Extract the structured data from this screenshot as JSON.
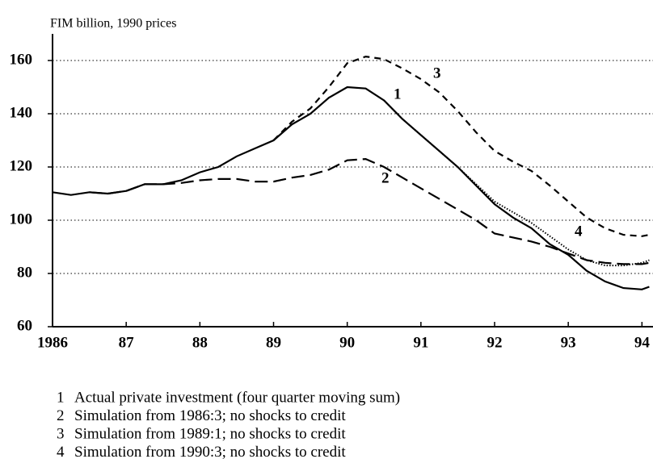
{
  "chart_data": {
    "type": "line",
    "y_label": "FIM billion, 1990 prices",
    "xlim": [
      1986,
      1994.15
    ],
    "ylim": [
      60,
      170
    ],
    "xticks": [
      1986,
      {
        "value": 1987,
        "label": "87"
      },
      {
        "value": 1988,
        "label": "88"
      },
      {
        "value": 1989,
        "label": "89"
      },
      {
        "value": 1990,
        "label": "90"
      },
      {
        "value": 1991,
        "label": "91"
      },
      {
        "value": 1992,
        "label": "92"
      },
      {
        "value": 1993,
        "label": "93"
      },
      {
        "value": 1994,
        "label": "94"
      }
    ],
    "yticks": [
      60,
      80,
      100,
      120,
      140,
      160
    ],
    "grid": true,
    "series": [
      {
        "label": "1",
        "name": "Actual private investment  (four quarter moving sum)",
        "color": "#000000",
        "style": "solid",
        "x": [
          1986,
          1986.25,
          1986.5,
          1986.75,
          1987,
          1987.25,
          1987.5,
          1987.75,
          1988,
          1988.25,
          1988.5,
          1988.75,
          1989,
          1989.25,
          1989.5,
          1989.75,
          1990,
          1990.25,
          1990.5,
          1990.75,
          1991,
          1991.25,
          1991.5,
          1991.75,
          1992,
          1992.25,
          1992.5,
          1992.75,
          1993,
          1993.25,
          1993.5,
          1993.75,
          1994,
          1994.1
        ],
        "values": [
          110.5,
          109.5,
          110.5,
          110,
          111,
          113.5,
          113.5,
          115,
          118,
          120,
          124,
          127,
          130,
          136,
          140,
          146,
          150,
          149.5,
          145,
          138,
          132,
          126,
          120,
          113,
          106,
          101,
          97,
          91,
          87,
          81,
          77,
          74.5,
          74,
          75
        ]
      },
      {
        "label": "2",
        "name": "Simulation from 1986:3; no shocks to credit",
        "color": "#000000",
        "style": "longdash",
        "x": [
          1986.5,
          1986.75,
          1987,
          1987.25,
          1987.5,
          1987.75,
          1988,
          1988.25,
          1988.5,
          1988.75,
          1989,
          1989.25,
          1989.5,
          1989.75,
          1990,
          1990.25,
          1990.5,
          1990.75,
          1991,
          1991.25,
          1991.5,
          1991.75,
          1992,
          1992.25,
          1992.5,
          1992.75,
          1993,
          1993.25,
          1993.5,
          1993.75,
          1994,
          1994.1
        ],
        "values": [
          110.5,
          110,
          111,
          113.5,
          113.5,
          114,
          115,
          115.5,
          115.5,
          114.5,
          114.5,
          116,
          117,
          119,
          122.5,
          123,
          120,
          116,
          112,
          108,
          104,
          100,
          95,
          93.5,
          92,
          90,
          87.5,
          85,
          84,
          83.5,
          83.5,
          84
        ]
      },
      {
        "label": "3",
        "name": "Simulation from 1989:1; no shocks to credit",
        "color": "#000000",
        "style": "dashed",
        "x": [
          1989,
          1989.25,
          1989.5,
          1989.75,
          1990,
          1990.25,
          1990.5,
          1990.75,
          1991,
          1991.25,
          1991.5,
          1991.75,
          1992,
          1992.25,
          1992.5,
          1992.75,
          1993,
          1993.25,
          1993.5,
          1993.75,
          1994,
          1994.1
        ],
        "values": [
          130,
          137,
          142,
          150,
          159,
          161.5,
          160.5,
          157,
          153,
          148,
          141,
          133,
          126,
          122,
          118.5,
          113,
          107,
          101,
          97,
          94.5,
          94,
          94.5
        ]
      },
      {
        "label": "4",
        "name": "Simulation from 1990:3; no shocks to credit",
        "color": "#000000",
        "style": "dotted",
        "x": [
          1990.5,
          1990.75,
          1991,
          1991.25,
          1991.5,
          1991.75,
          1992,
          1992.25,
          1992.5,
          1992.75,
          1993,
          1993.25,
          1993.5,
          1993.75,
          1994,
          1994.1
        ],
        "values": [
          145,
          138,
          132,
          126,
          120,
          113.5,
          107,
          103,
          99,
          94,
          89,
          85,
          83,
          83,
          84,
          85
        ]
      }
    ]
  }
}
